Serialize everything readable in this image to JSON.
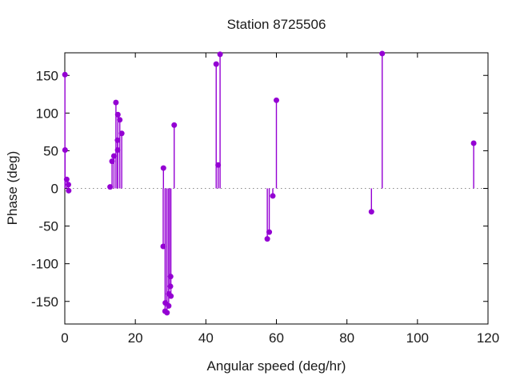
{
  "chart_data": {
    "type": "scatter",
    "style": "stem",
    "title": "Station 8725506",
    "xlabel": "Angular speed (deg/hr)",
    "ylabel": "Phase (deg)",
    "xlim": [
      0,
      120
    ],
    "ylim": [
      -180,
      180
    ],
    "xticks": [
      0,
      20,
      40,
      60,
      80,
      100,
      120
    ],
    "yticks": [
      -150,
      -100,
      -50,
      0,
      50,
      100,
      150
    ],
    "grid": false,
    "legend": "none",
    "zero_line": true,
    "marker_color": "#9400d3",
    "zero_line_color": "#888888",
    "border_color": "#000000",
    "background_color": "#ffffff",
    "x": [
      0.04,
      0.08,
      0.54,
      1.02,
      1.1,
      12.85,
      13.4,
      13.94,
      14.5,
      14.96,
      15.0,
      15.04,
      15.59,
      16.14,
      27.9,
      27.97,
      28.44,
      28.51,
      28.98,
      29.46,
      29.53,
      29.96,
      30.0,
      30.08,
      31.02,
      42.93,
      43.48,
      44.03,
      57.42,
      57.97,
      58.98,
      60.0,
      86.95,
      90.0,
      115.94
    ],
    "y": [
      151,
      51,
      12,
      5,
      -3,
      2,
      36,
      43,
      114,
      64,
      51,
      98,
      91,
      73,
      -77,
      27,
      -163,
      -152,
      -165,
      -156,
      -140,
      -130,
      -117,
      -143,
      84,
      165,
      31,
      178,
      -67,
      -58,
      -10,
      117,
      -31,
      179,
      60
    ]
  }
}
